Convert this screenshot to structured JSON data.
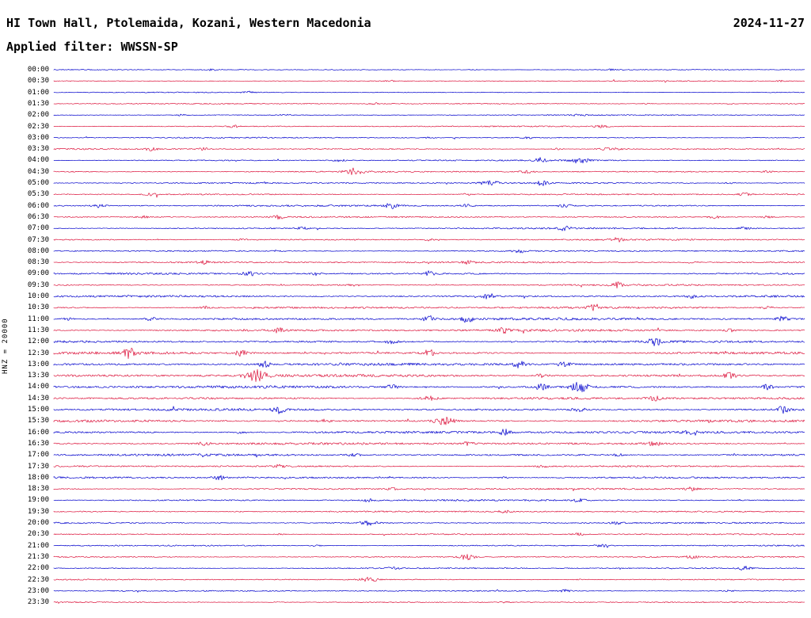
{
  "header": {
    "title": "HI Town Hall, Ptolemaida, Kozani, Western Macedonia",
    "date": "2024-11-27",
    "filter_line": "Applied filter: WWSSN-SP"
  },
  "axis": {
    "scale_label": "HNZ = 20000"
  },
  "chart_data": {
    "type": "line",
    "subtype": "helicorder-seismogram",
    "station_title": "HI Town Hall, Ptolemaida, Kozani, Western Macedonia",
    "date": "2024-11-27",
    "filter": "WWSSN-SP",
    "channel_scale": "HNZ = 20000",
    "minutes_per_line": 30,
    "legend_position": "none",
    "grid": false,
    "trace_colors": {
      "blue": "#0000cc",
      "red": "#dc143c"
    },
    "rows": [
      {
        "t": "00:00",
        "color": "blue",
        "amp": 0.6,
        "bursts": [
          [
            0.21,
            3
          ],
          [
            0.56,
            2.5
          ],
          [
            0.74,
            2
          ]
        ]
      },
      {
        "t": "00:30",
        "color": "red",
        "amp": 0.6,
        "bursts": [
          [
            0.17,
            2
          ],
          [
            0.45,
            2
          ],
          [
            0.97,
            2.5
          ]
        ]
      },
      {
        "t": "01:00",
        "color": "blue",
        "amp": 0.6,
        "bursts": [
          [
            0.26,
            2.5
          ],
          [
            0.76,
            2
          ]
        ]
      },
      {
        "t": "01:30",
        "color": "red",
        "amp": 0.7,
        "bursts": [
          [
            0.43,
            2.5
          ],
          [
            0.79,
            3
          ],
          [
            0.9,
            2.5
          ]
        ]
      },
      {
        "t": "02:00",
        "color": "blue",
        "amp": 0.7,
        "bursts": [
          [
            0.17,
            3
          ],
          [
            0.31,
            2.5
          ],
          [
            0.7,
            2
          ]
        ]
      },
      {
        "t": "02:30",
        "color": "red",
        "amp": 0.8,
        "bursts": [
          [
            0.24,
            2
          ],
          [
            0.73,
            3.5
          ]
        ]
      },
      {
        "t": "03:00",
        "color": "blue",
        "amp": 0.8,
        "bursts": [
          [
            0.5,
            2
          ],
          [
            0.63,
            2
          ]
        ]
      },
      {
        "t": "03:30",
        "color": "red",
        "amp": 0.9,
        "bursts": [
          [
            0.13,
            3
          ],
          [
            0.2,
            3
          ],
          [
            0.67,
            3.5
          ],
          [
            0.74,
            4,
            0.015
          ]
        ]
      },
      {
        "t": "04:00",
        "color": "blue",
        "amp": 0.9,
        "bursts": [
          [
            0.38,
            2.5
          ],
          [
            0.65,
            4
          ],
          [
            0.7,
            4.5,
            0.012
          ]
        ]
      },
      {
        "t": "04:30",
        "color": "red",
        "amp": 0.9,
        "bursts": [
          [
            0.4,
            5,
            0.012
          ],
          [
            0.63,
            3
          ],
          [
            0.95,
            2.5
          ]
        ]
      },
      {
        "t": "05:00",
        "color": "blue",
        "amp": 1.0,
        "bursts": [
          [
            0.58,
            4.5,
            0.012
          ],
          [
            0.65,
            3.5
          ],
          [
            0.9,
            2.5
          ]
        ]
      },
      {
        "t": "05:30",
        "color": "red",
        "amp": 1.0,
        "bursts": [
          [
            0.13,
            2.5
          ],
          [
            0.55,
            3
          ],
          [
            0.92,
            3.5
          ]
        ]
      },
      {
        "t": "06:00",
        "color": "blue",
        "amp": 1.1,
        "bursts": [
          [
            0.06,
            3.5
          ],
          [
            0.45,
            3.5
          ],
          [
            0.55,
            2.5
          ],
          [
            0.68,
            3
          ]
        ]
      },
      {
        "t": "06:30",
        "color": "red",
        "amp": 1.0,
        "bursts": [
          [
            0.12,
            3
          ],
          [
            0.3,
            2.5
          ],
          [
            0.88,
            3
          ],
          [
            0.95,
            3.5
          ]
        ]
      },
      {
        "t": "07:00",
        "color": "blue",
        "amp": 1.0,
        "bursts": [
          [
            0.33,
            2.5
          ],
          [
            0.68,
            2.5
          ],
          [
            0.92,
            3.5
          ]
        ]
      },
      {
        "t": "07:30",
        "color": "red",
        "amp": 1.0,
        "bursts": [
          [
            0.25,
            2
          ],
          [
            0.5,
            2.5
          ],
          [
            0.75,
            2.5
          ]
        ]
      },
      {
        "t": "08:00",
        "color": "blue",
        "amp": 1.0,
        "bursts": [
          [
            0.3,
            2
          ],
          [
            0.62,
            2.5
          ]
        ]
      },
      {
        "t": "08:30",
        "color": "red",
        "amp": 1.1,
        "bursts": [
          [
            0.2,
            2.5
          ],
          [
            0.55,
            2.5
          ],
          [
            0.85,
            2.5
          ]
        ]
      },
      {
        "t": "09:00",
        "color": "blue",
        "amp": 1.2,
        "bursts": [
          [
            0.26,
            3.5
          ],
          [
            0.35,
            3
          ],
          [
            0.5,
            3.5
          ]
        ]
      },
      {
        "t": "09:30",
        "color": "red",
        "amp": 1.1,
        "bursts": [
          [
            0.4,
            2.5
          ],
          [
            0.75,
            3.5
          ]
        ]
      },
      {
        "t": "10:00",
        "color": "blue",
        "amp": 1.4,
        "bursts": [
          [
            0.58,
            3.5
          ],
          [
            0.85,
            2.5
          ]
        ]
      },
      {
        "t": "10:30",
        "color": "red",
        "amp": 1.4,
        "bursts": [
          [
            0.2,
            3
          ],
          [
            0.72,
            3.5
          ],
          [
            0.95,
            3
          ]
        ]
      },
      {
        "t": "11:00",
        "color": "blue",
        "amp": 1.6,
        "bursts": [
          [
            0.02,
            3.5
          ],
          [
            0.13,
            3
          ],
          [
            0.5,
            3.5
          ],
          [
            0.55,
            3
          ],
          [
            0.97,
            3.5
          ]
        ]
      },
      {
        "t": "11:30",
        "color": "red",
        "amp": 1.5,
        "bursts": [
          [
            0.3,
            2.5
          ],
          [
            0.6,
            2.5
          ],
          [
            0.9,
            2.5
          ]
        ]
      },
      {
        "t": "12:00",
        "color": "blue",
        "amp": 1.6,
        "bursts": [
          [
            0.45,
            2.5
          ],
          [
            0.8,
            3.5
          ]
        ]
      },
      {
        "t": "12:30",
        "color": "red",
        "amp": 1.7,
        "bursts": [
          [
            0.1,
            3.5
          ],
          [
            0.25,
            4
          ],
          [
            0.5,
            3.5
          ]
        ]
      },
      {
        "t": "13:00",
        "color": "blue",
        "amp": 1.7,
        "bursts": [
          [
            0.28,
            4
          ],
          [
            0.62,
            4
          ],
          [
            0.68,
            3.5
          ]
        ]
      },
      {
        "t": "13:30",
        "color": "red",
        "amp": 1.8,
        "bursts": [
          [
            0.27,
            5,
            0.015
          ],
          [
            0.65,
            3
          ],
          [
            0.9,
            3.5
          ]
        ]
      },
      {
        "t": "14:00",
        "color": "blue",
        "amp": 1.8,
        "bursts": [
          [
            0.45,
            3.5
          ],
          [
            0.65,
            4
          ],
          [
            0.7,
            5,
            0.012
          ],
          [
            0.95,
            3.5
          ]
        ]
      },
      {
        "t": "14:30",
        "color": "red",
        "amp": 1.6,
        "bursts": [
          [
            0.5,
            4.5,
            0.012
          ],
          [
            0.8,
            2.5
          ]
        ]
      },
      {
        "t": "15:00",
        "color": "blue",
        "amp": 1.6,
        "bursts": [
          [
            0.3,
            3.5
          ],
          [
            0.7,
            3
          ],
          [
            0.97,
            4
          ]
        ]
      },
      {
        "t": "15:30",
        "color": "red",
        "amp": 1.6,
        "bursts": [
          [
            0.36,
            3
          ],
          [
            0.52,
            5,
            0.012
          ]
        ]
      },
      {
        "t": "16:00",
        "color": "blue",
        "amp": 1.6,
        "bursts": [
          [
            0.25,
            2.5
          ],
          [
            0.6,
            3
          ],
          [
            0.85,
            2.5
          ]
        ]
      },
      {
        "t": "16:30",
        "color": "red",
        "amp": 1.5,
        "bursts": [
          [
            0.2,
            2.5
          ],
          [
            0.55,
            2.5
          ],
          [
            0.8,
            2.5
          ]
        ]
      },
      {
        "t": "17:00",
        "color": "blue",
        "amp": 1.5,
        "bursts": [
          [
            0.4,
            2.5
          ],
          [
            0.75,
            2.5
          ]
        ]
      },
      {
        "t": "17:30",
        "color": "red",
        "amp": 1.2,
        "bursts": [
          [
            0.3,
            2
          ],
          [
            0.65,
            2.5
          ]
        ]
      },
      {
        "t": "18:00",
        "color": "blue",
        "amp": 1.3,
        "bursts": [
          [
            0.22,
            3.5
          ],
          [
            0.6,
            2.5
          ]
        ]
      },
      {
        "t": "18:30",
        "color": "red",
        "amp": 1.1,
        "bursts": [
          [
            0.45,
            2
          ],
          [
            0.85,
            2.5
          ]
        ]
      },
      {
        "t": "19:00",
        "color": "blue",
        "amp": 1.1,
        "bursts": [
          [
            0.42,
            3.5
          ],
          [
            0.7,
            2.5
          ]
        ]
      },
      {
        "t": "19:30",
        "color": "red",
        "amp": 1.0,
        "bursts": [
          [
            0.25,
            2
          ],
          [
            0.6,
            2
          ]
        ]
      },
      {
        "t": "20:00",
        "color": "blue",
        "amp": 1.0,
        "bursts": [
          [
            0.42,
            4.5,
            0.012
          ],
          [
            0.75,
            2.5
          ]
        ]
      },
      {
        "t": "20:30",
        "color": "red",
        "amp": 0.9,
        "bursts": [
          [
            0.3,
            2
          ],
          [
            0.7,
            2.5
          ]
        ]
      },
      {
        "t": "21:00",
        "color": "blue",
        "amp": 0.9,
        "bursts": [
          [
            0.35,
            2.5
          ],
          [
            0.73,
            4
          ]
        ]
      },
      {
        "t": "21:30",
        "color": "red",
        "amp": 0.9,
        "bursts": [
          [
            0.55,
            5,
            0.01
          ],
          [
            0.85,
            2.5
          ]
        ]
      },
      {
        "t": "22:00",
        "color": "blue",
        "amp": 0.8,
        "bursts": [
          [
            0.45,
            2.5
          ],
          [
            0.92,
            4
          ]
        ]
      },
      {
        "t": "22:30",
        "color": "red",
        "amp": 0.8,
        "bursts": [
          [
            0.42,
            4.5,
            0.012
          ],
          [
            0.7,
            2
          ]
        ]
      },
      {
        "t": "23:00",
        "color": "blue",
        "amp": 0.8,
        "bursts": [
          [
            0.68,
            3.5
          ],
          [
            0.9,
            2.5
          ]
        ]
      },
      {
        "t": "23:30",
        "color": "red",
        "amp": 0.7,
        "bursts": [
          [
            0.3,
            2
          ],
          [
            0.6,
            2
          ]
        ]
      }
    ]
  }
}
